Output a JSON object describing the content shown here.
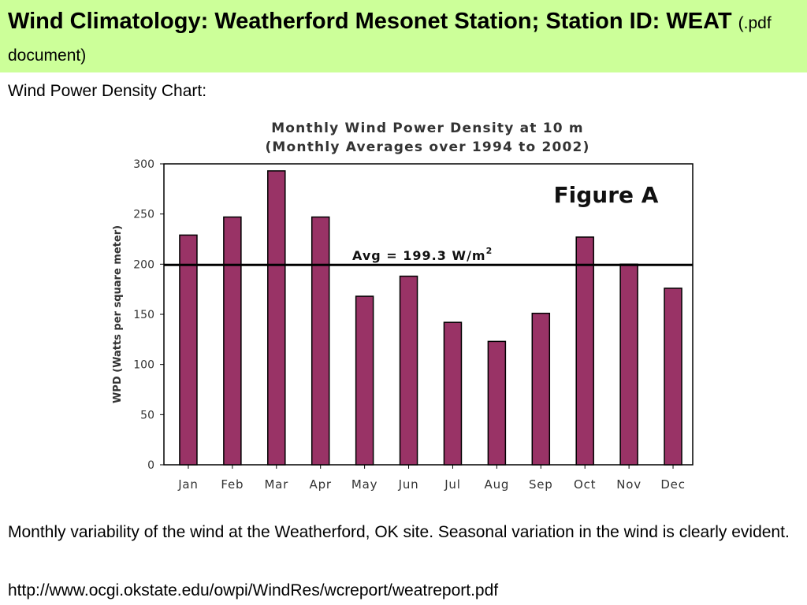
{
  "header": {
    "title": "Wind Climatology: Weatherford Mesonet Station; Station ID: WEAT",
    "title_suffix": "(.pdf document)",
    "background_color": "#ccff99"
  },
  "subtitle": "Wind Power Density Chart:",
  "chart_data": {
    "type": "bar",
    "title_line1": "Monthly Wind Power Density at 10 m",
    "title_line2": "(Monthly Averages over 1994 to 2002)",
    "figure_label": "Figure A",
    "categories": [
      "Jan",
      "Feb",
      "Mar",
      "Apr",
      "May",
      "Jun",
      "Jul",
      "Aug",
      "Sep",
      "Oct",
      "Nov",
      "Dec"
    ],
    "values": [
      229,
      247,
      293,
      247,
      168,
      188,
      142,
      123,
      151,
      227,
      200,
      176
    ],
    "ylabel": "WPD (Watts per square meter)",
    "xlabel": "",
    "ylim": [
      0,
      300
    ],
    "yticks": [
      0,
      50,
      100,
      150,
      200,
      250,
      300
    ],
    "reference_line": {
      "value": 199.3,
      "label": "Avg = 199.3 W/m",
      "label_superscript": "2"
    },
    "bar_color": "#993366",
    "grid": false
  },
  "caption": "Monthly variability of the wind at the Weatherford, OK site.  Seasonal variation in the wind is clearly evident.",
  "url": "http://www.ocgi.okstate.edu/owpi/WindRes/wcreport/weatreport.pdf"
}
